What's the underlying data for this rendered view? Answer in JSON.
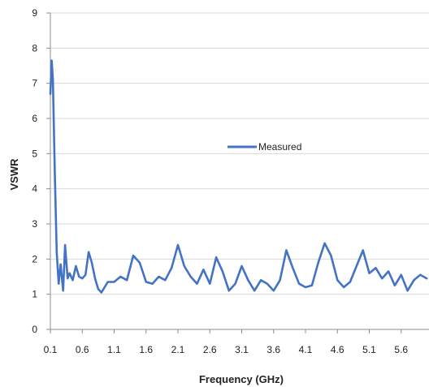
{
  "chart_data": {
    "type": "line",
    "xlabel": "Frequency (GHz)",
    "ylabel": "VSWR",
    "xlim": [
      0.1,
      6.0
    ],
    "ylim": [
      0,
      9
    ],
    "x_ticks": [
      "0.1",
      "0.6",
      "1.1",
      "1.6",
      "2.1",
      "2.6",
      "3.1",
      "3.6",
      "4.1",
      "4.6",
      "5.1",
      "5.6"
    ],
    "y_ticks": [
      "0",
      "1",
      "2",
      "3",
      "4",
      "5",
      "6",
      "7",
      "8",
      "9"
    ],
    "grid": "horizontal",
    "legend_position": "center",
    "series": [
      {
        "name": "Measured",
        "color": "#4472C4",
        "x": [
          0.1,
          0.12,
          0.14,
          0.17,
          0.2,
          0.23,
          0.26,
          0.3,
          0.33,
          0.37,
          0.4,
          0.45,
          0.5,
          0.55,
          0.6,
          0.65,
          0.7,
          0.75,
          0.8,
          0.85,
          0.9,
          1.0,
          1.1,
          1.2,
          1.3,
          1.4,
          1.5,
          1.6,
          1.7,
          1.8,
          1.9,
          2.0,
          2.1,
          2.2,
          2.3,
          2.4,
          2.5,
          2.6,
          2.7,
          2.8,
          2.9,
          3.0,
          3.1,
          3.2,
          3.3,
          3.4,
          3.5,
          3.6,
          3.7,
          3.8,
          3.9,
          4.0,
          4.1,
          4.2,
          4.3,
          4.4,
          4.5,
          4.6,
          4.7,
          4.8,
          4.9,
          5.0,
          5.1,
          5.2,
          5.3,
          5.4,
          5.5,
          5.6,
          5.7,
          5.8,
          5.9,
          6.0
        ],
        "y": [
          6.7,
          7.65,
          7.1,
          4.4,
          2.2,
          1.3,
          1.85,
          1.1,
          2.4,
          1.45,
          1.6,
          1.4,
          1.8,
          1.5,
          1.45,
          1.55,
          2.2,
          1.9,
          1.45,
          1.15,
          1.05,
          1.35,
          1.35,
          1.5,
          1.4,
          2.1,
          1.9,
          1.35,
          1.3,
          1.5,
          1.4,
          1.75,
          2.4,
          1.8,
          1.5,
          1.3,
          1.7,
          1.3,
          2.05,
          1.65,
          1.1,
          1.3,
          1.8,
          1.4,
          1.1,
          1.4,
          1.3,
          1.1,
          1.4,
          2.25,
          1.75,
          1.3,
          1.2,
          1.25,
          1.9,
          2.45,
          2.1,
          1.4,
          1.2,
          1.35,
          1.8,
          2.25,
          1.6,
          1.75,
          1.45,
          1.65,
          1.25,
          1.55,
          1.1,
          1.4,
          1.55,
          1.45
        ]
      }
    ]
  }
}
